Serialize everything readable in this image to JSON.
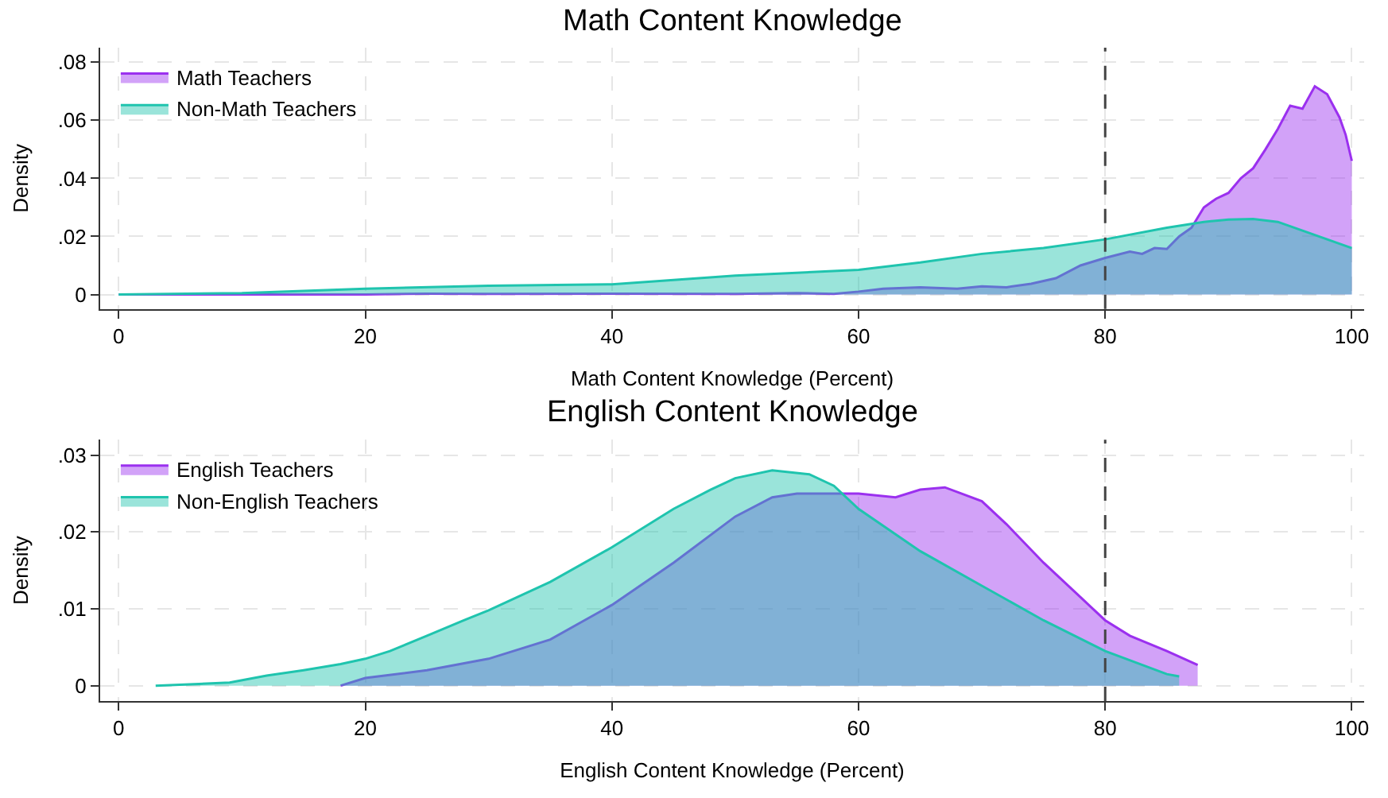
{
  "chart_data": [
    {
      "type": "area",
      "title": "Math Content Knowledge",
      "xlabel": "Math Content Knowledge (Percent)",
      "ylabel": "Density",
      "series": [
        {
          "name": "Math Teachers",
          "color": "#9b30ef",
          "x": [
            0,
            20,
            25,
            30,
            40,
            50,
            55,
            58,
            60,
            62,
            65,
            68,
            70,
            72,
            74,
            76,
            78,
            80,
            82,
            83,
            84,
            85,
            86,
            87,
            88,
            89,
            90,
            91,
            92,
            93,
            94,
            95,
            96,
            97,
            98,
            99,
            99.5,
            100
          ],
          "values": [
            0,
            0,
            0.0003,
            0.0002,
            0.0003,
            0.0002,
            0.0005,
            0.0002,
            0.001,
            0.002,
            0.0025,
            0.002,
            0.0028,
            0.0025,
            0.0037,
            0.0056,
            0.01,
            0.0126,
            0.0148,
            0.014,
            0.016,
            0.0157,
            0.02,
            0.023,
            0.03,
            0.033,
            0.035,
            0.04,
            0.0435,
            0.05,
            0.057,
            0.065,
            0.064,
            0.0717,
            0.069,
            0.061,
            0.055,
            0.046
          ]
        },
        {
          "name": "Non-Math Teachers",
          "color": "#1fc4ae",
          "x": [
            0,
            10,
            20,
            30,
            40,
            45,
            50,
            60,
            65,
            70,
            75,
            80,
            85,
            88,
            90,
            92,
            94,
            96,
            98,
            100
          ],
          "values": [
            0,
            0.0005,
            0.002,
            0.003,
            0.0035,
            0.005,
            0.0065,
            0.0085,
            0.011,
            0.014,
            0.016,
            0.019,
            0.023,
            0.025,
            0.0258,
            0.026,
            0.025,
            0.022,
            0.019,
            0.016
          ]
        }
      ],
      "xlim": [
        -1.5,
        101
      ],
      "xticks": [
        0,
        20,
        40,
        60,
        80,
        100
      ],
      "ylim": [
        -0.005,
        0.085
      ],
      "yticks": [
        {
          "value": 0,
          "label": "0"
        },
        {
          "value": 0.02,
          "label": ".02"
        },
        {
          "value": 0.04,
          "label": ".04"
        },
        {
          "value": 0.06,
          "label": ".06"
        },
        {
          "value": 0.08,
          "label": ".08"
        }
      ],
      "ref_lines": [
        {
          "axis": "x",
          "value": 80,
          "line_style": "dashed",
          "color": "#444444"
        }
      ],
      "grid": true,
      "legend": "top left"
    },
    {
      "type": "area",
      "title": "English Content Knowledge",
      "xlabel": "English Content Knowledge (Percent)",
      "ylabel": "Density",
      "series": [
        {
          "name": "English Teachers",
          "color": "#9b30ef",
          "x": [
            18,
            20,
            25,
            30,
            35,
            40,
            45,
            50,
            53,
            55,
            60,
            63,
            65,
            67,
            70,
            72,
            75,
            78,
            80,
            82,
            85,
            87.5
          ],
          "values": [
            0,
            0.001,
            0.002,
            0.0035,
            0.006,
            0.0105,
            0.016,
            0.022,
            0.0245,
            0.025,
            0.025,
            0.0245,
            0.0255,
            0.0258,
            0.024,
            0.021,
            0.016,
            0.0115,
            0.0085,
            0.0065,
            0.0045,
            0.0027
          ]
        },
        {
          "name": "Non-English Teachers",
          "color": "#1fc4ae",
          "x": [
            3,
            9,
            12,
            15,
            18,
            20,
            22,
            25,
            28,
            30,
            35,
            40,
            45,
            48,
            50,
            53,
            56,
            58,
            60,
            65,
            70,
            75,
            80,
            85,
            86
          ],
          "values": [
            0,
            0.0004,
            0.0013,
            0.002,
            0.0028,
            0.0035,
            0.0045,
            0.0065,
            0.0085,
            0.0098,
            0.0135,
            0.018,
            0.023,
            0.0255,
            0.027,
            0.028,
            0.0275,
            0.026,
            0.023,
            0.0175,
            0.013,
            0.0085,
            0.0045,
            0.0015,
            0.0012
          ]
        }
      ],
      "xlim": [
        -1.5,
        101
      ],
      "xticks": [
        0,
        20,
        40,
        60,
        80,
        100
      ],
      "ylim": [
        -0.002,
        0.032
      ],
      "yticks": [
        {
          "value": 0,
          "label": "0"
        },
        {
          "value": 0.01,
          "label": ".01"
        },
        {
          "value": 0.02,
          "label": ".02"
        },
        {
          "value": 0.03,
          "label": ".03"
        }
      ],
      "ref_lines": [
        {
          "axis": "x",
          "value": 80,
          "line_style": "dashed",
          "color": "#444444"
        }
      ],
      "grid": true,
      "legend": "top left"
    }
  ]
}
